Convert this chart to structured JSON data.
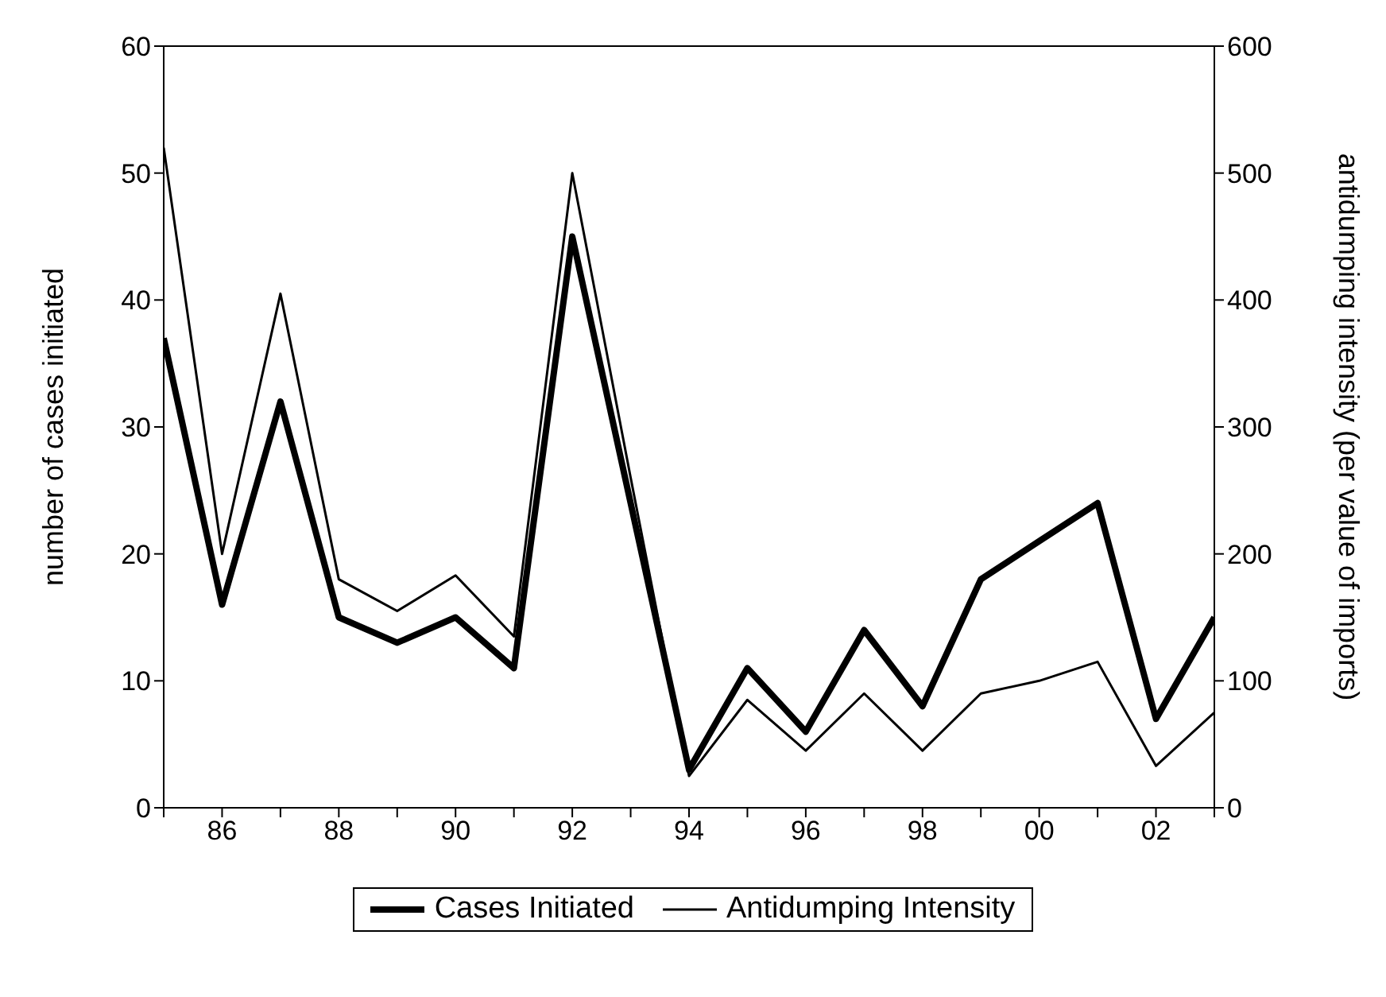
{
  "chart_data": {
    "type": "line",
    "categories": [
      null,
      "86",
      null,
      "88",
      null,
      "90",
      null,
      "92",
      null,
      "94",
      null,
      "96",
      null,
      "98",
      null,
      "00",
      null,
      "02",
      null
    ],
    "ylabel": "number of cases initiated",
    "y2label": "antidumping intensity (per value of imports)",
    "ylim": [
      0,
      60
    ],
    "yticks": [
      0,
      10,
      20,
      30,
      40,
      50,
      60
    ],
    "y2lim": [
      0,
      600
    ],
    "y2ticks": [
      0,
      100,
      200,
      300,
      400,
      500,
      600
    ],
    "legend": "bottom",
    "marker": "none",
    "line_style": "solid",
    "series": [
      {
        "name": "Cases Initiated",
        "color": "#000000",
        "values": [
          37,
          16,
          32,
          15,
          13,
          15,
          11,
          45,
          24,
          3,
          11,
          6,
          14,
          8,
          18,
          21,
          24,
          7,
          15
        ]
      },
      {
        "name": "Antidumping Intensity",
        "color": "#000000",
        "axis": "y2",
        "values": [
          520,
          200,
          405,
          180,
          155,
          183,
          135,
          500,
          260,
          25,
          85,
          45,
          90,
          45,
          90,
          100,
          115,
          33,
          75
        ]
      }
    ]
  }
}
